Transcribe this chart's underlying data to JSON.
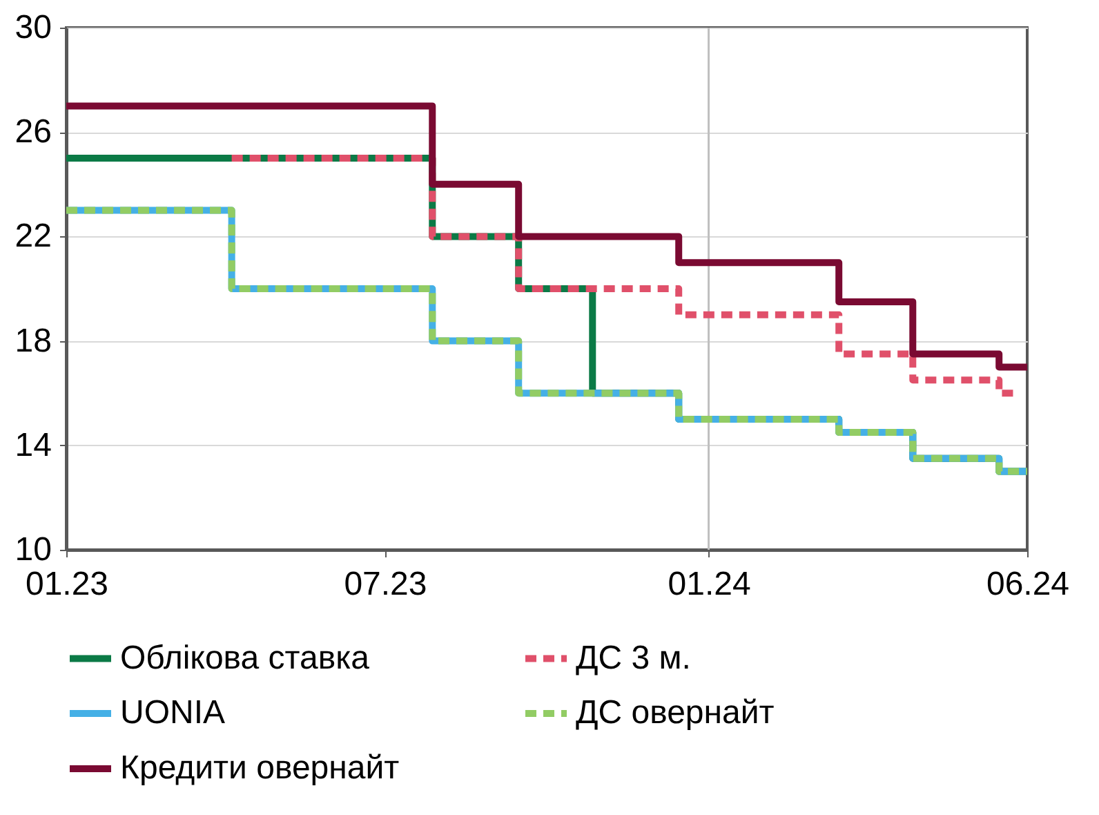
{
  "chart_data": {
    "type": "step",
    "xlim": [
      "2023-01-01",
      "2024-06-30"
    ],
    "xticks": [
      {
        "value": "2023-01-01",
        "label": "01.23"
      },
      {
        "value": "2023-07-01",
        "label": "07.23"
      },
      {
        "value": "2024-01-01",
        "label": "01.24"
      },
      {
        "value": "2024-06-30",
        "label": "06.24"
      }
    ],
    "ylim": [
      10,
      30
    ],
    "yticks": [
      10,
      14,
      18,
      22,
      26,
      30
    ],
    "grid": "y",
    "legend": "bottom",
    "ref_lines": [
      {
        "axis": "x",
        "value": "2024-01-01"
      }
    ],
    "series": [
      {
        "name": "Облікова ставка",
        "color": "#0b7a46",
        "line_style": "solid",
        "x": [
          "2023-01-01",
          "2023-07-28",
          "2023-09-15",
          "2023-10-27",
          "2023-12-15",
          "2024-03-15",
          "2024-04-26",
          "2024-06-14",
          "2024-06-30"
        ],
        "values": [
          25,
          22,
          20,
          16,
          15,
          14.5,
          13.5,
          13,
          13
        ]
      },
      {
        "name": "ДС 3 м.",
        "color": "#e0506a",
        "line_style": "dashed",
        "x": [
          "2023-04-05",
          "2023-07-28",
          "2023-09-15",
          "2023-12-15",
          "2024-03-15",
          "2024-04-26",
          "2024-06-14",
          "2024-06-25"
        ],
        "values": [
          25,
          22,
          20,
          19,
          17.5,
          16.5,
          16,
          16
        ]
      },
      {
        "name": "UONIA",
        "color": "#45b0e6",
        "line_style": "solid",
        "x": [
          "2023-01-01",
          "2023-04-05",
          "2023-07-28",
          "2023-09-15",
          "2023-12-15",
          "2024-03-15",
          "2024-04-26",
          "2024-06-14",
          "2024-06-30"
        ],
        "values": [
          23,
          20,
          18,
          16,
          15,
          14.5,
          13.5,
          13,
          13
        ]
      },
      {
        "name": "ДС овернайт",
        "color": "#92cc64",
        "line_style": "dashed",
        "x": [
          "2023-01-01",
          "2023-04-05",
          "2023-07-28",
          "2023-09-15",
          "2023-12-15",
          "2024-03-15",
          "2024-04-26",
          "2024-06-14",
          "2024-06-30"
        ],
        "values": [
          23,
          20,
          18,
          16,
          15,
          14.5,
          13.5,
          13,
          13
        ]
      },
      {
        "name": "Кредити овернайт",
        "color": "#7a0a32",
        "line_style": "solid",
        "x": [
          "2023-01-01",
          "2023-07-28",
          "2023-09-15",
          "2023-12-15",
          "2024-03-15",
          "2024-04-26",
          "2024-06-14",
          "2024-06-30"
        ],
        "values": [
          27,
          24,
          22,
          21,
          19.5,
          17.5,
          17,
          17
        ]
      }
    ]
  }
}
